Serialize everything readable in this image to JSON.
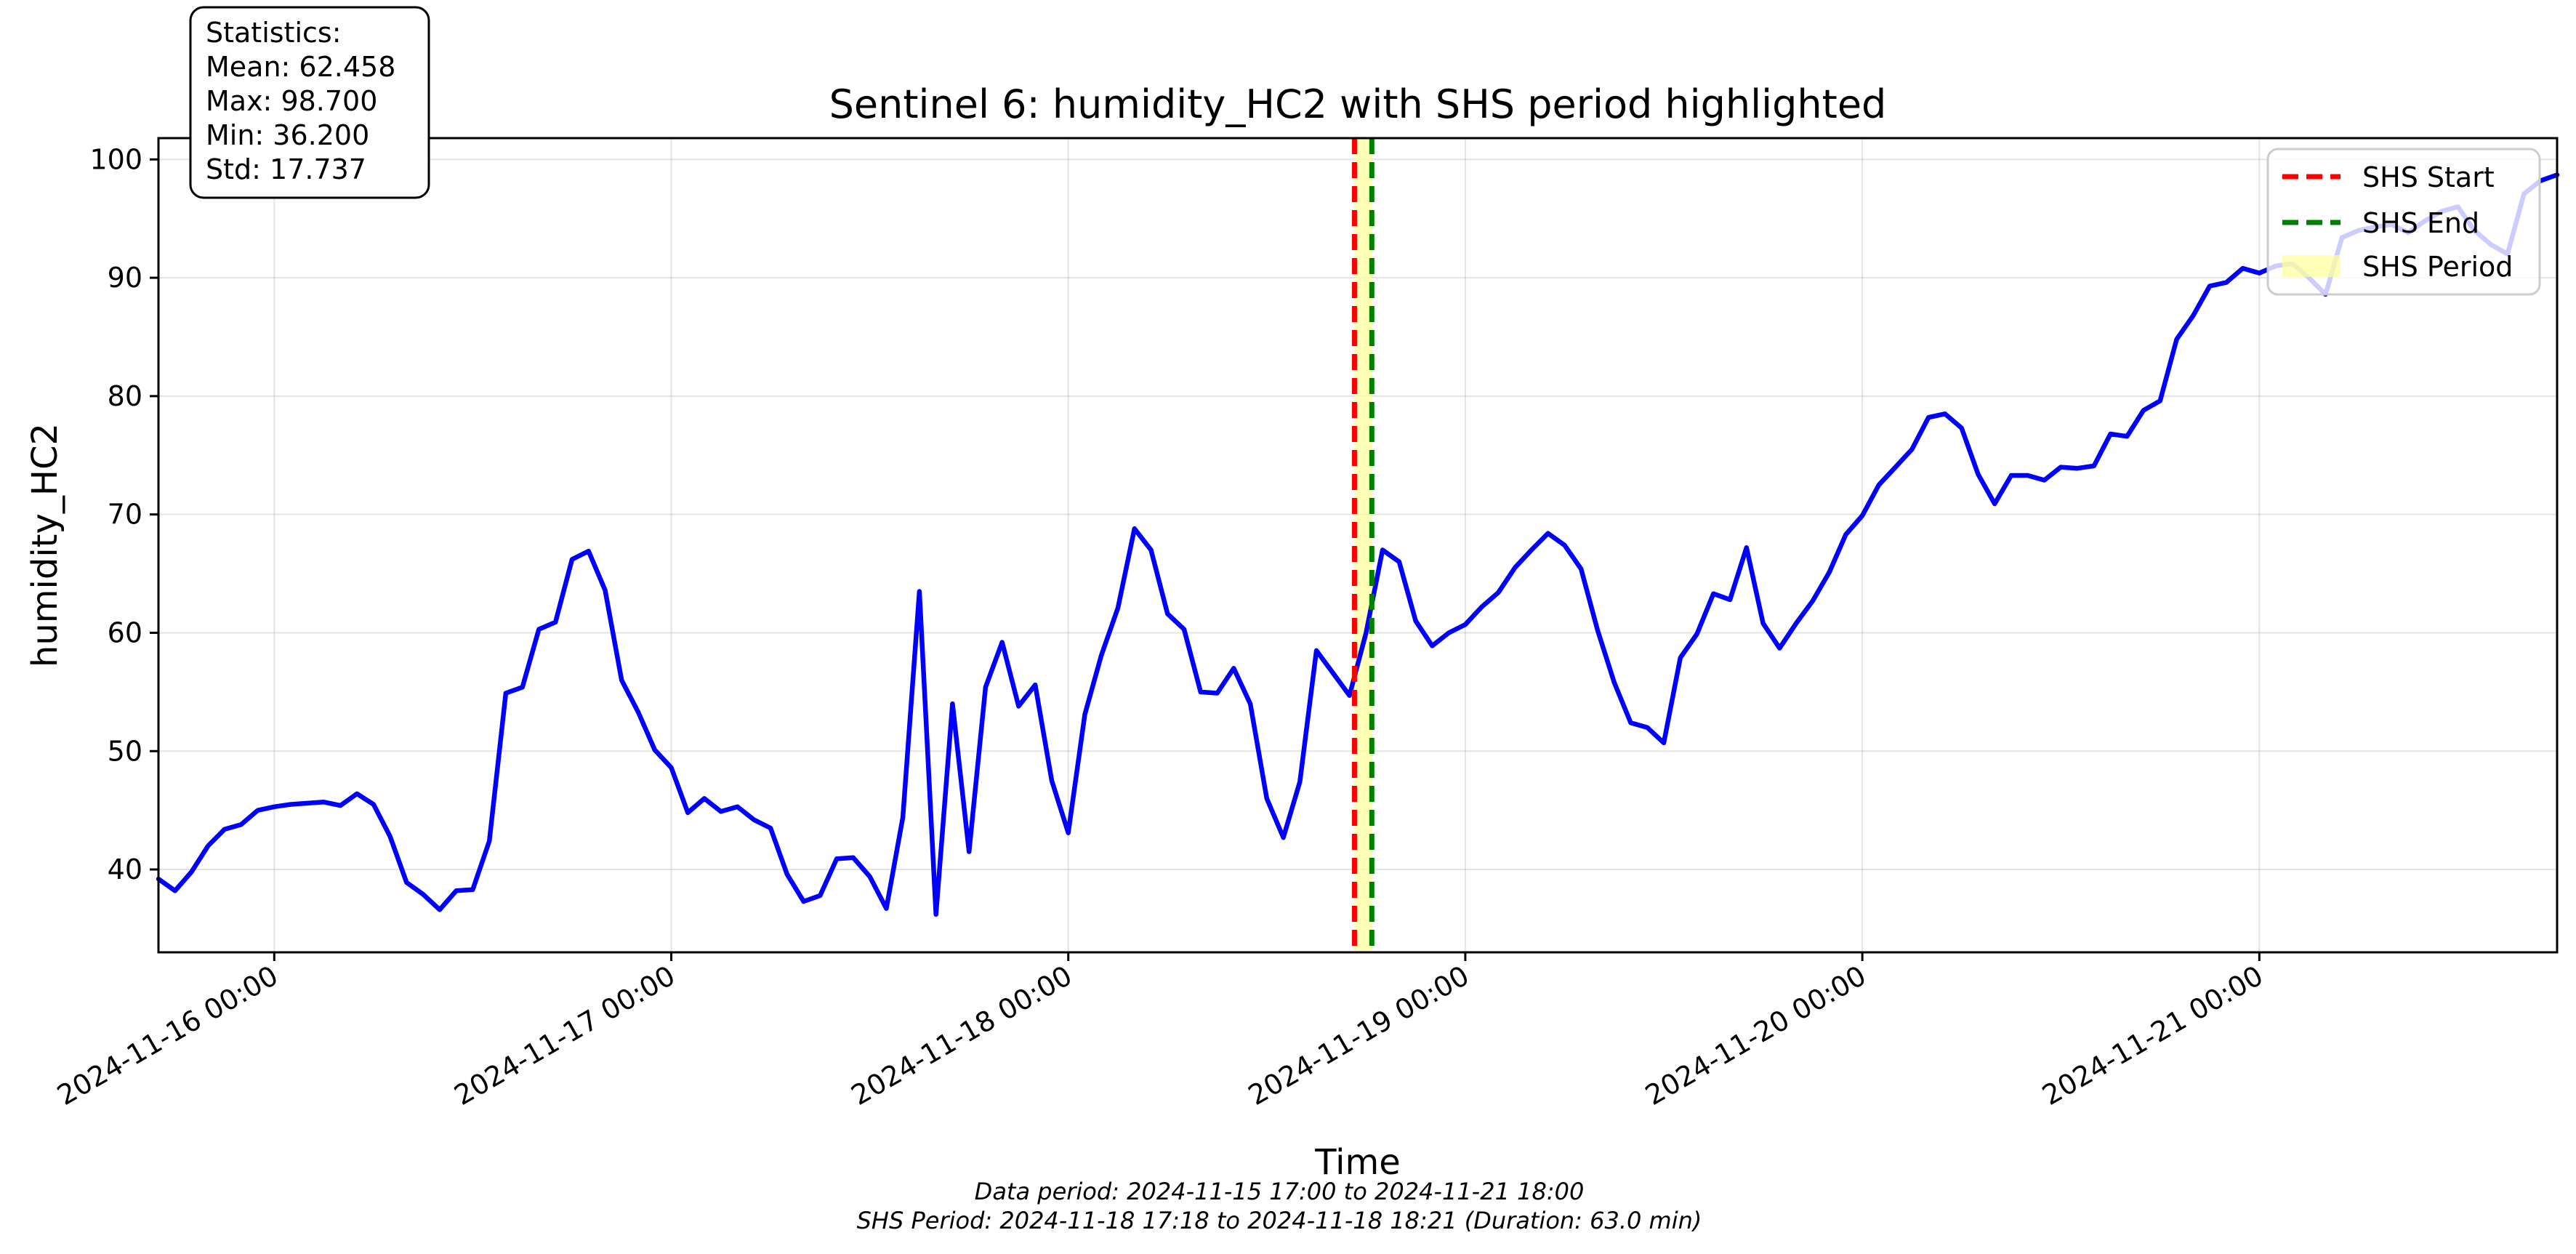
{
  "chart_data": {
    "type": "line",
    "title": "Sentinel 6: humidity_HC2 with SHS period highlighted",
    "xlabel": "Time",
    "ylabel": "humidity_HC2",
    "x_range": [
      "2024-11-15 17:00",
      "2024-11-21 18:00"
    ],
    "ylim": [
      33,
      101.8
    ],
    "y_ticks": [
      40,
      50,
      60,
      70,
      80,
      90,
      100
    ],
    "x_ticks": [
      "2024-11-16 00:00",
      "2024-11-17 00:00",
      "2024-11-18 00:00",
      "2024-11-19 00:00",
      "2024-11-20 00:00",
      "2024-11-21 00:00"
    ],
    "grid": true,
    "legend_placement": "top-right",
    "series": [
      {
        "name": "",
        "color": "#0000ff",
        "points": [
          [
            "2024-11-15 17:00",
            39.2
          ],
          [
            "2024-11-15 18:00",
            38.2
          ],
          [
            "2024-11-15 19:00",
            39.8
          ],
          [
            "2024-11-15 20:00",
            42.0
          ],
          [
            "2024-11-15 21:00",
            43.4
          ],
          [
            "2024-11-15 22:00",
            43.8
          ],
          [
            "2024-11-15 23:00",
            45.0
          ],
          [
            "2024-11-16 00:00",
            45.3
          ],
          [
            "2024-11-16 01:00",
            45.5
          ],
          [
            "2024-11-16 02:00",
            45.6
          ],
          [
            "2024-11-16 03:00",
            45.7
          ],
          [
            "2024-11-16 04:00",
            45.4
          ],
          [
            "2024-11-16 05:00",
            46.4
          ],
          [
            "2024-11-16 06:00",
            45.5
          ],
          [
            "2024-11-16 07:00",
            42.8
          ],
          [
            "2024-11-16 08:00",
            38.9
          ],
          [
            "2024-11-16 09:00",
            37.9
          ],
          [
            "2024-11-16 10:00",
            36.6
          ],
          [
            "2024-11-16 11:00",
            38.2
          ],
          [
            "2024-11-16 12:00",
            38.3
          ],
          [
            "2024-11-16 13:00",
            42.4
          ],
          [
            "2024-11-16 14:00",
            54.9
          ],
          [
            "2024-11-16 15:00",
            55.4
          ],
          [
            "2024-11-16 16:00",
            60.3
          ],
          [
            "2024-11-16 17:00",
            60.9
          ],
          [
            "2024-11-16 18:00",
            66.2
          ],
          [
            "2024-11-16 19:00",
            66.9
          ],
          [
            "2024-11-16 20:00",
            63.6
          ],
          [
            "2024-11-16 21:00",
            56.0
          ],
          [
            "2024-11-16 22:00",
            53.3
          ],
          [
            "2024-11-16 23:00",
            50.1
          ],
          [
            "2024-11-17 00:00",
            48.6
          ],
          [
            "2024-11-17 01:00",
            44.8
          ],
          [
            "2024-11-17 02:00",
            46.0
          ],
          [
            "2024-11-17 03:00",
            44.9
          ],
          [
            "2024-11-17 04:00",
            45.3
          ],
          [
            "2024-11-17 05:00",
            44.2
          ],
          [
            "2024-11-17 06:00",
            43.5
          ],
          [
            "2024-11-17 07:00",
            39.6
          ],
          [
            "2024-11-17 08:00",
            37.3
          ],
          [
            "2024-11-17 09:00",
            37.8
          ],
          [
            "2024-11-17 10:00",
            40.9
          ],
          [
            "2024-11-17 11:00",
            41.0
          ],
          [
            "2024-11-17 12:00",
            39.4
          ],
          [
            "2024-11-17 13:00",
            36.7
          ],
          [
            "2024-11-17 14:00",
            44.4
          ],
          [
            "2024-11-17 15:00",
            63.5
          ],
          [
            "2024-11-17 16:00",
            36.2
          ],
          [
            "2024-11-17 17:00",
            54.0
          ],
          [
            "2024-11-17 18:00",
            41.5
          ],
          [
            "2024-11-17 19:00",
            55.4
          ],
          [
            "2024-11-17 20:00",
            59.2
          ],
          [
            "2024-11-17 21:00",
            53.8
          ],
          [
            "2024-11-17 22:00",
            55.6
          ],
          [
            "2024-11-17 23:00",
            47.5
          ],
          [
            "2024-11-18 00:00",
            43.1
          ],
          [
            "2024-11-18 01:00",
            53.1
          ],
          [
            "2024-11-18 02:00",
            58.1
          ],
          [
            "2024-11-18 03:00",
            62.1
          ],
          [
            "2024-11-18 04:00",
            68.8
          ],
          [
            "2024-11-18 05:00",
            67.0
          ],
          [
            "2024-11-18 06:00",
            61.6
          ],
          [
            "2024-11-18 07:00",
            60.3
          ],
          [
            "2024-11-18 08:00",
            55.0
          ],
          [
            "2024-11-18 09:00",
            54.9
          ],
          [
            "2024-11-18 10:00",
            57.0
          ],
          [
            "2024-11-18 11:00",
            54.0
          ],
          [
            "2024-11-18 12:00",
            46.0
          ],
          [
            "2024-11-18 13:00",
            42.7
          ],
          [
            "2024-11-18 14:00",
            47.4
          ],
          [
            "2024-11-18 15:00",
            58.5
          ],
          [
            "2024-11-18 16:00",
            56.6
          ],
          [
            "2024-11-18 17:00",
            54.7
          ],
          [
            "2024-11-18 18:00",
            60.0
          ],
          [
            "2024-11-18 19:00",
            67.0
          ],
          [
            "2024-11-18 20:00",
            66.0
          ],
          [
            "2024-11-18 21:00",
            61.0
          ],
          [
            "2024-11-18 22:00",
            58.9
          ],
          [
            "2024-11-18 23:00",
            60.0
          ],
          [
            "2024-11-19 00:00",
            60.7
          ],
          [
            "2024-11-19 01:00",
            62.2
          ],
          [
            "2024-11-19 02:00",
            63.4
          ],
          [
            "2024-11-19 03:00",
            65.5
          ],
          [
            "2024-11-19 04:00",
            67.0
          ],
          [
            "2024-11-19 05:00",
            68.4
          ],
          [
            "2024-11-19 06:00",
            67.4
          ],
          [
            "2024-11-19 07:00",
            65.4
          ],
          [
            "2024-11-19 08:00",
            60.2
          ],
          [
            "2024-11-19 09:00",
            55.8
          ],
          [
            "2024-11-19 10:00",
            52.4
          ],
          [
            "2024-11-19 11:00",
            52.0
          ],
          [
            "2024-11-19 12:00",
            50.7
          ],
          [
            "2024-11-19 13:00",
            57.9
          ],
          [
            "2024-11-19 14:00",
            59.9
          ],
          [
            "2024-11-19 15:00",
            63.3
          ],
          [
            "2024-11-19 16:00",
            62.8
          ],
          [
            "2024-11-19 17:00",
            67.2
          ],
          [
            "2024-11-19 18:00",
            60.8
          ],
          [
            "2024-11-19 19:00",
            58.7
          ],
          [
            "2024-11-19 20:00",
            60.8
          ],
          [
            "2024-11-19 21:00",
            62.7
          ],
          [
            "2024-11-19 22:00",
            65.1
          ],
          [
            "2024-11-19 23:00",
            68.3
          ],
          [
            "2024-11-20 00:00",
            69.9
          ],
          [
            "2024-11-20 01:00",
            72.5
          ],
          [
            "2024-11-20 02:00",
            74.0
          ],
          [
            "2024-11-20 03:00",
            75.5
          ],
          [
            "2024-11-20 04:00",
            78.2
          ],
          [
            "2024-11-20 05:00",
            78.5
          ],
          [
            "2024-11-20 06:00",
            77.3
          ],
          [
            "2024-11-20 07:00",
            73.4
          ],
          [
            "2024-11-20 08:00",
            70.9
          ],
          [
            "2024-11-20 09:00",
            73.3
          ],
          [
            "2024-11-20 10:00",
            73.3
          ],
          [
            "2024-11-20 11:00",
            72.9
          ],
          [
            "2024-11-20 12:00",
            74.0
          ],
          [
            "2024-11-20 13:00",
            73.9
          ],
          [
            "2024-11-20 14:00",
            74.1
          ],
          [
            "2024-11-20 15:00",
            76.8
          ],
          [
            "2024-11-20 16:00",
            76.6
          ],
          [
            "2024-11-20 17:00",
            78.8
          ],
          [
            "2024-11-20 18:00",
            79.6
          ],
          [
            "2024-11-20 19:00",
            84.8
          ],
          [
            "2024-11-20 20:00",
            86.8
          ],
          [
            "2024-11-20 21:00",
            89.3
          ],
          [
            "2024-11-20 22:00",
            89.6
          ],
          [
            "2024-11-20 23:00",
            90.8
          ],
          [
            "2024-11-21 00:00",
            90.4
          ],
          [
            "2024-11-21 01:00",
            91.0
          ],
          [
            "2024-11-21 02:00",
            91.2
          ],
          [
            "2024-11-21 03:00",
            90.0
          ],
          [
            "2024-11-21 04:00",
            88.6
          ],
          [
            "2024-11-21 05:00",
            93.4
          ],
          [
            "2024-11-21 06:00",
            94.0
          ],
          [
            "2024-11-21 07:00",
            94.3
          ],
          [
            "2024-11-21 08:00",
            94.5
          ],
          [
            "2024-11-21 09:00",
            93.8
          ],
          [
            "2024-11-21 10:00",
            94.8
          ],
          [
            "2024-11-21 11:00",
            95.6
          ],
          [
            "2024-11-21 12:00",
            96.0
          ],
          [
            "2024-11-21 13:00",
            94.0
          ],
          [
            "2024-11-21 14:00",
            92.8
          ],
          [
            "2024-11-21 15:00",
            92.0
          ],
          [
            "2024-11-21 16:00",
            97.1
          ],
          [
            "2024-11-21 17:00",
            98.2
          ],
          [
            "2024-11-21 18:00",
            98.7
          ]
        ]
      }
    ],
    "shs": {
      "start": "2024-11-18 17:18",
      "end": "2024-11-18 18:21",
      "start_color": "#ff0000",
      "end_color": "#008000",
      "period_color": "#ffff99"
    },
    "legend": [
      {
        "label": "SHS Start",
        "color": "#ff0000",
        "kind": "dashed-line"
      },
      {
        "label": "SHS End",
        "color": "#008000",
        "kind": "dashed-line"
      },
      {
        "label": "SHS Period",
        "color": "#ffff99",
        "kind": "patch"
      }
    ],
    "statistics_box": [
      "Statistics:",
      "Mean: 62.458",
      "Max: 98.700",
      "Min: 36.200",
      "Std: 17.737"
    ],
    "captions": [
      "Data period: 2024-11-15 17:00 to 2024-11-21 18:00",
      "SHS Period: 2024-11-18 17:18 to 2024-11-18 18:21 (Duration: 63.0 min)"
    ]
  }
}
